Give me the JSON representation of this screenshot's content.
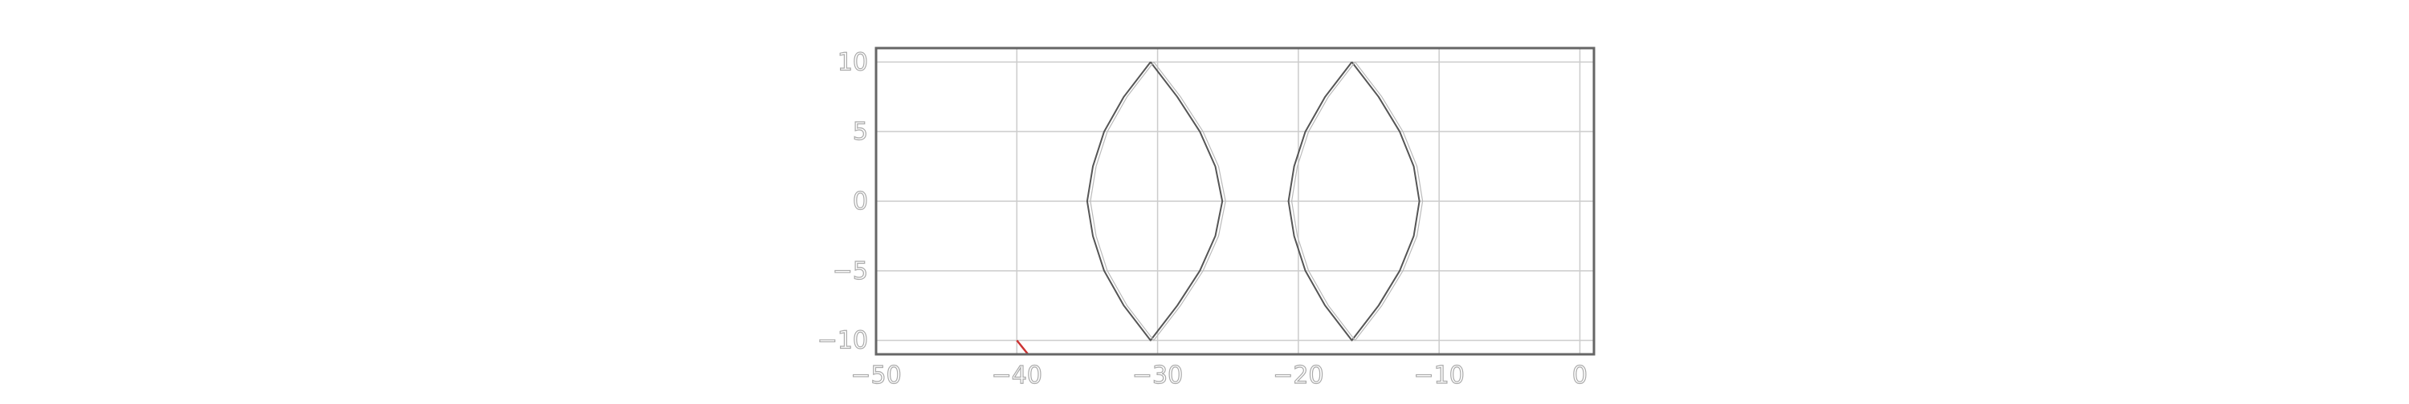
{
  "chart_data": {
    "type": "line",
    "title": "",
    "xlabel": "",
    "ylabel": "",
    "xlim": [
      -50,
      1
    ],
    "ylim": [
      -11,
      11
    ],
    "grid": true,
    "x_ticks": [
      -50,
      -40,
      -30,
      -20,
      -10,
      0
    ],
    "y_ticks": [
      -10,
      -5,
      0,
      5,
      10
    ],
    "x_tick_labels": [
      "−50",
      "−40",
      "−30",
      "−20",
      "−10",
      "0"
    ],
    "y_tick_labels": [
      "−10",
      "−5",
      "0",
      "5",
      "10"
    ],
    "colors": {
      "frame": "#666666",
      "grid": "#cccccc",
      "tick_text": "#aaaaaa",
      "series": "#555555",
      "marker": "#cc3333"
    },
    "series": [
      {
        "x": [
          -30.5,
          -32.4,
          -33.8,
          -34.6,
          -35.0,
          -34.6,
          -33.8,
          -32.4,
          -30.5,
          -28.6,
          -27.0,
          -25.9,
          -25.4,
          -25.9,
          -27.0,
          -28.6,
          -30.5
        ],
        "y": [
          10,
          7.5,
          5,
          2.5,
          0,
          -2.5,
          -5,
          -7.5,
          -10,
          -7.5,
          -5,
          -2.5,
          0,
          2.5,
          5,
          7.5,
          10
        ]
      },
      {
        "x": [
          -16.2,
          -18.1,
          -19.5,
          -20.3,
          -20.7,
          -20.3,
          -19.5,
          -18.1,
          -16.2,
          -14.3,
          -12.8,
          -11.8,
          -11.4,
          -11.8,
          -12.8,
          -14.3,
          -16.2
        ],
        "y": [
          10,
          7.5,
          5,
          2.5,
          0,
          -2.5,
          -5,
          -7.5,
          -10,
          -7.5,
          -5,
          -2.5,
          0,
          2.5,
          5,
          7.5,
          10
        ]
      },
      {
        "x": [
          -40,
          -39.2
        ],
        "y": [
          -10,
          -11
        ]
      }
    ]
  }
}
